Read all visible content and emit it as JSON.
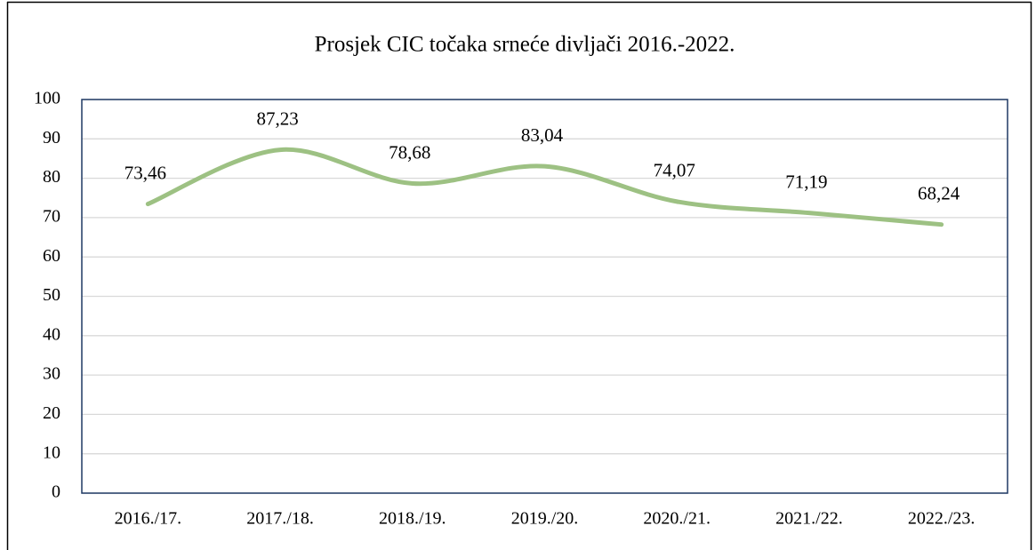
{
  "chart_data": {
    "type": "line",
    "title": "Prosjek CIC točaka srneće divljači 2016.-2022.",
    "categories": [
      "2016./17.",
      "2017./18.",
      "2018./19.",
      "2019./20.",
      "2020./21.",
      "2021./22.",
      "2022./23."
    ],
    "values": [
      73.46,
      87.23,
      78.68,
      83.04,
      74.07,
      71.19,
      68.24
    ],
    "value_labels": [
      "73,46",
      "87,23",
      "78,68",
      "83,04",
      "74,07",
      "71,19",
      "68,24"
    ],
    "color": "#9dc183",
    "smooth": true,
    "ylim": [
      0,
      100
    ],
    "yticks": [
      0,
      10,
      20,
      30,
      40,
      50,
      60,
      70,
      80,
      90,
      100
    ],
    "grid": true
  }
}
